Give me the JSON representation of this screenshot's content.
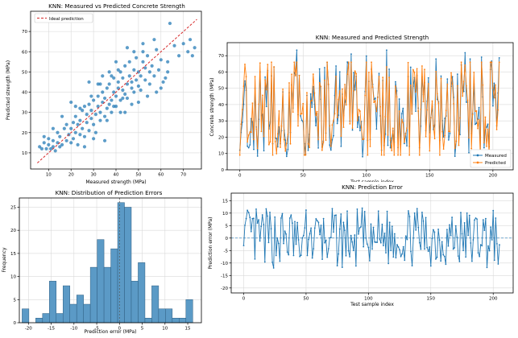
{
  "colors": {
    "blue": "#1f77b4",
    "orange": "#ff7f0e",
    "red": "#d62728",
    "bar": "#5b9ac6"
  },
  "chart_data": [
    {
      "id": "scatter",
      "type": "scatter",
      "title": "KNN: Measured vs Predicted Concrete Strength",
      "xlabel": "Measured strength (MPa)",
      "ylabel": "Predicted strength (MPa)",
      "xlim": [
        2,
        78
      ],
      "ylim": [
        2,
        80
      ],
      "xticks": [
        10,
        20,
        30,
        40,
        50,
        60,
        70
      ],
      "yticks": [
        10,
        20,
        30,
        40,
        50,
        60,
        70
      ],
      "legend": {
        "position": "top-left",
        "entries": [
          "Ideal prediction"
        ]
      },
      "grid": true,
      "ideal_line": [
        [
          5,
          5
        ],
        [
          76,
          76
        ]
      ],
      "points": [
        [
          6,
          13
        ],
        [
          7,
          12
        ],
        [
          8,
          15
        ],
        [
          8,
          18
        ],
        [
          9,
          12
        ],
        [
          10,
          14
        ],
        [
          10,
          17
        ],
        [
          11,
          12
        ],
        [
          12,
          16
        ],
        [
          12,
          13
        ],
        [
          13,
          11
        ],
        [
          14,
          15
        ],
        [
          14,
          20
        ],
        [
          15,
          13
        ],
        [
          15,
          18
        ],
        [
          16,
          14
        ],
        [
          17,
          22
        ],
        [
          18,
          16
        ],
        [
          18,
          24
        ],
        [
          19,
          19
        ],
        [
          20,
          22
        ],
        [
          20,
          15
        ],
        [
          21,
          17
        ],
        [
          21,
          25
        ],
        [
          22,
          20
        ],
        [
          22,
          28
        ],
        [
          23,
          14
        ],
        [
          23,
          24
        ],
        [
          24,
          26
        ],
        [
          24,
          19
        ],
        [
          25,
          31
        ],
        [
          25,
          22
        ],
        [
          26,
          33
        ],
        [
          26,
          18
        ],
        [
          27,
          25
        ],
        [
          27,
          29
        ],
        [
          28,
          21
        ],
        [
          28,
          34
        ],
        [
          29,
          27
        ],
        [
          29,
          31
        ],
        [
          30,
          24
        ],
        [
          30,
          36
        ],
        [
          31,
          29
        ],
        [
          31,
          20
        ],
        [
          32,
          33
        ],
        [
          32,
          38
        ],
        [
          33,
          30
        ],
        [
          33,
          26
        ],
        [
          34,
          40
        ],
        [
          34,
          35
        ],
        [
          35,
          28
        ],
        [
          35,
          37
        ],
        [
          36,
          42
        ],
        [
          36,
          32
        ],
        [
          37,
          34
        ],
        [
          37,
          44
        ],
        [
          38,
          36
        ],
        [
          38,
          30
        ],
        [
          39,
          47
        ],
        [
          39,
          40
        ],
        [
          40,
          38
        ],
        [
          40,
          33
        ],
        [
          41,
          45
        ],
        [
          41,
          42
        ],
        [
          42,
          36
        ],
        [
          42,
          50
        ],
        [
          43,
          41
        ],
        [
          43,
          47
        ],
        [
          44,
          39
        ],
        [
          44,
          53
        ],
        [
          45,
          44
        ],
        [
          45,
          37
        ],
        [
          46,
          48
        ],
        [
          46,
          55
        ],
        [
          47,
          42
        ],
        [
          47,
          45
        ],
        [
          48,
          51
        ],
        [
          48,
          40
        ],
        [
          49,
          46
        ],
        [
          49,
          57
        ],
        [
          50,
          43
        ],
        [
          50,
          50
        ],
        [
          51,
          48
        ],
        [
          51,
          41
        ],
        [
          52,
          55
        ],
        [
          52,
          60
        ],
        [
          53,
          46
        ],
        [
          53,
          52
        ],
        [
          54,
          58
        ],
        [
          55,
          44
        ],
        [
          55,
          50
        ],
        [
          56,
          53
        ],
        [
          57,
          48
        ],
        [
          58,
          61
        ],
        [
          59,
          51
        ],
        [
          60,
          56
        ],
        [
          61,
          45
        ],
        [
          62,
          47
        ],
        [
          63,
          55
        ],
        [
          64,
          74
        ],
        [
          66,
          63
        ],
        [
          68,
          58
        ],
        [
          70,
          64
        ],
        [
          72,
          60
        ],
        [
          73,
          66
        ],
        [
          74,
          58
        ],
        [
          75,
          62
        ],
        [
          26,
          13
        ],
        [
          30,
          17
        ],
        [
          35,
          16
        ],
        [
          32,
          44
        ],
        [
          20,
          35
        ],
        [
          45,
          62
        ],
        [
          50,
          35
        ],
        [
          58,
          40
        ],
        [
          40,
          55
        ],
        [
          38,
          48
        ],
        [
          28,
          45
        ],
        [
          16,
          28
        ],
        [
          12,
          22
        ],
        [
          42,
          30
        ],
        [
          47,
          34
        ],
        [
          54,
          38
        ],
        [
          36,
          26
        ],
        [
          33,
          44
        ],
        [
          24,
          32
        ],
        [
          29,
          38
        ],
        [
          41,
          51
        ],
        [
          39,
          33
        ],
        [
          44,
          30
        ],
        [
          52,
          64
        ],
        [
          57,
          66
        ],
        [
          60,
          42
        ],
        [
          63,
          50
        ],
        [
          48,
          60
        ],
        [
          22,
          33
        ],
        [
          34,
          48
        ],
        [
          37,
          50
        ],
        [
          43,
          37
        ]
      ]
    },
    {
      "id": "series",
      "type": "line",
      "title": "KNN: Measured and Predicted Strength",
      "xlabel": "Test sample index",
      "ylabel": "Concrete strength (MPa)",
      "xlim": [
        -10,
        216
      ],
      "ylim": [
        0,
        78
      ],
      "xticks": [
        0,
        50,
        100,
        150,
        200
      ],
      "yticks": [
        0,
        10,
        20,
        30,
        40,
        50,
        60,
        70
      ],
      "legend": {
        "position": "bottom-right",
        "entries": [
          "Measured",
          "Predicted"
        ]
      },
      "grid": true,
      "seed_measured": 7,
      "seed_predicted": 13,
      "n": 206,
      "note_values_estimated": true
    },
    {
      "id": "hist",
      "type": "bar",
      "title": "KNN: Distribution of Prediction Errors",
      "xlabel": "Prediction error (MPa)",
      "ylabel": "Frequency",
      "xlim": [
        -22,
        18
      ],
      "ylim": [
        0,
        27
      ],
      "xticks": [
        -20,
        -15,
        -10,
        -5,
        0,
        5,
        10,
        15
      ],
      "yticks": [
        0,
        5,
        10,
        15,
        20,
        25
      ],
      "bin_start": -21.4,
      "bin_width": 1.5,
      "values": [
        3,
        0,
        1,
        2,
        9,
        2,
        8,
        4,
        6,
        4,
        12,
        18,
        12,
        16,
        26,
        25,
        9,
        13,
        1,
        8,
        3,
        3,
        1,
        1,
        5
      ],
      "grid": true
    },
    {
      "id": "error",
      "type": "line",
      "title": "KNN: Prediction Error",
      "xlabel": "Test sample index",
      "ylabel": "Prediction error (MPa)",
      "xlim": [
        -10,
        216
      ],
      "ylim": [
        -22,
        18
      ],
      "xticks": [
        0,
        50,
        100,
        150,
        200
      ],
      "yticks": [
        -20,
        -15,
        -10,
        -5,
        0,
        5,
        10,
        15
      ],
      "grid": true
    }
  ]
}
